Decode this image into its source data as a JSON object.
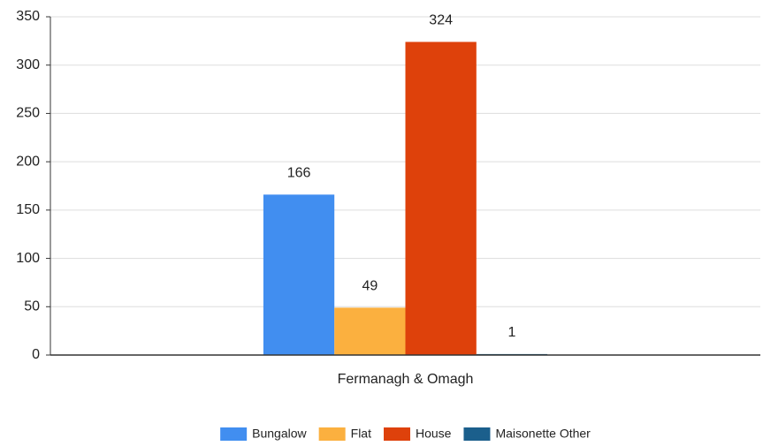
{
  "chart_data": {
    "type": "bar",
    "categories": [
      "Fermanagh & Omagh"
    ],
    "series": [
      {
        "name": "Bungalow",
        "color": "#418ef0",
        "values": [
          166
        ]
      },
      {
        "name": "Flat",
        "color": "#fbb03f",
        "values": [
          49
        ]
      },
      {
        "name": "House",
        "color": "#de410b",
        "values": [
          324
        ]
      },
      {
        "name": "Maisonette Other",
        "color": "#1b5f8c",
        "values": [
          1
        ]
      }
    ],
    "ylim": [
      0,
      350
    ],
    "yticks": [
      0,
      50,
      100,
      150,
      200,
      250,
      300,
      350
    ],
    "grid": true,
    "legend": "bottom"
  }
}
